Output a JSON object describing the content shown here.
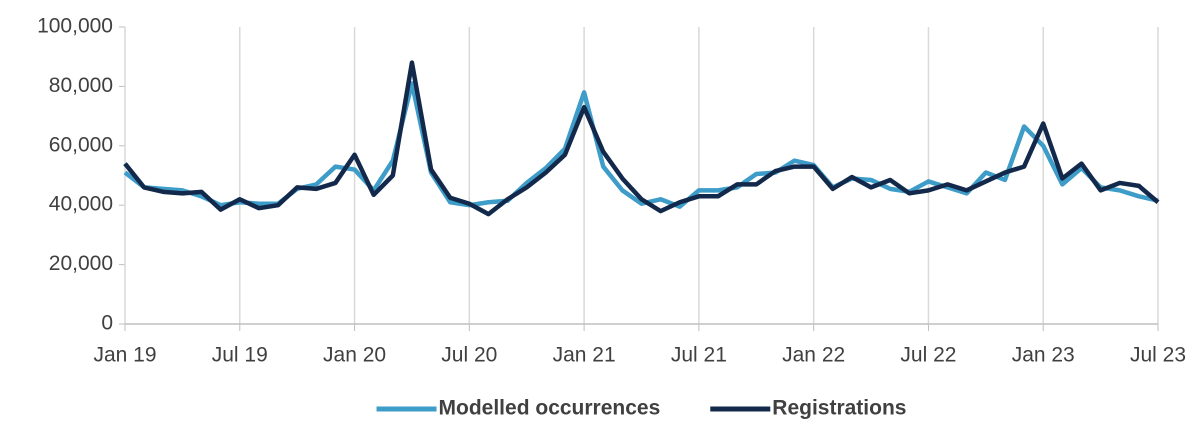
{
  "chart_data": {
    "type": "line",
    "categories": [
      "Jan 19",
      null,
      null,
      null,
      null,
      null,
      "Jul 19",
      null,
      null,
      null,
      null,
      null,
      "Jan 20",
      null,
      null,
      null,
      null,
      null,
      "Jul 20",
      null,
      null,
      null,
      null,
      null,
      "Jan 21",
      null,
      null,
      null,
      null,
      null,
      "Jul 21",
      null,
      null,
      null,
      null,
      null,
      "Jan 22",
      null,
      null,
      null,
      null,
      null,
      "Jul 22",
      null,
      null,
      null,
      null,
      null,
      "Jan 23",
      null,
      null,
      null,
      null,
      null,
      "Jul 23"
    ],
    "series": [
      {
        "name": "Modelled occurrences",
        "color": "#3d9cc8",
        "values": [
          51000,
          46000,
          45500,
          45000,
          43000,
          40000,
          41000,
          40500,
          40500,
          45500,
          47000,
          53000,
          52000,
          45000,
          55000,
          81000,
          51000,
          41000,
          40000,
          41000,
          41500,
          47500,
          52500,
          59000,
          78000,
          53000,
          45000,
          40500,
          42000,
          39500,
          45000,
          45000,
          46000,
          50500,
          51000,
          55000,
          53500,
          46000,
          49000,
          48500,
          45500,
          44500,
          48000,
          46000,
          44000,
          51000,
          48500,
          66500,
          60000,
          47000,
          52500,
          46000,
          45000,
          43000,
          41500
        ]
      },
      {
        "name": "Registrations",
        "color": "#13294b",
        "values": [
          54000,
          46000,
          44500,
          44000,
          44500,
          38500,
          42000,
          39000,
          40000,
          46000,
          45500,
          47500,
          57000,
          43500,
          50000,
          88000,
          52000,
          42500,
          40500,
          37000,
          42000,
          46000,
          51000,
          57000,
          73000,
          58000,
          49000,
          42000,
          38000,
          41000,
          43000,
          43000,
          47000,
          47000,
          51500,
          53000,
          53000,
          45500,
          49500,
          46000,
          48500,
          44000,
          45000,
          47000,
          45000,
          48000,
          51000,
          53000,
          67500,
          49000,
          54000,
          45000,
          47500,
          46500,
          41000
        ]
      }
    ],
    "ylim": [
      0,
      100000
    ],
    "yticks": [
      0,
      {
        "value": 20000,
        "label": "20,000"
      },
      {
        "value": 40000,
        "label": "40,000"
      },
      {
        "value": 60000,
        "label": "60,000"
      },
      {
        "value": 80000,
        "label": "80,000"
      },
      {
        "value": 100000,
        "label": "100,000"
      }
    ],
    "grid": "x",
    "legend": "bottom"
  }
}
